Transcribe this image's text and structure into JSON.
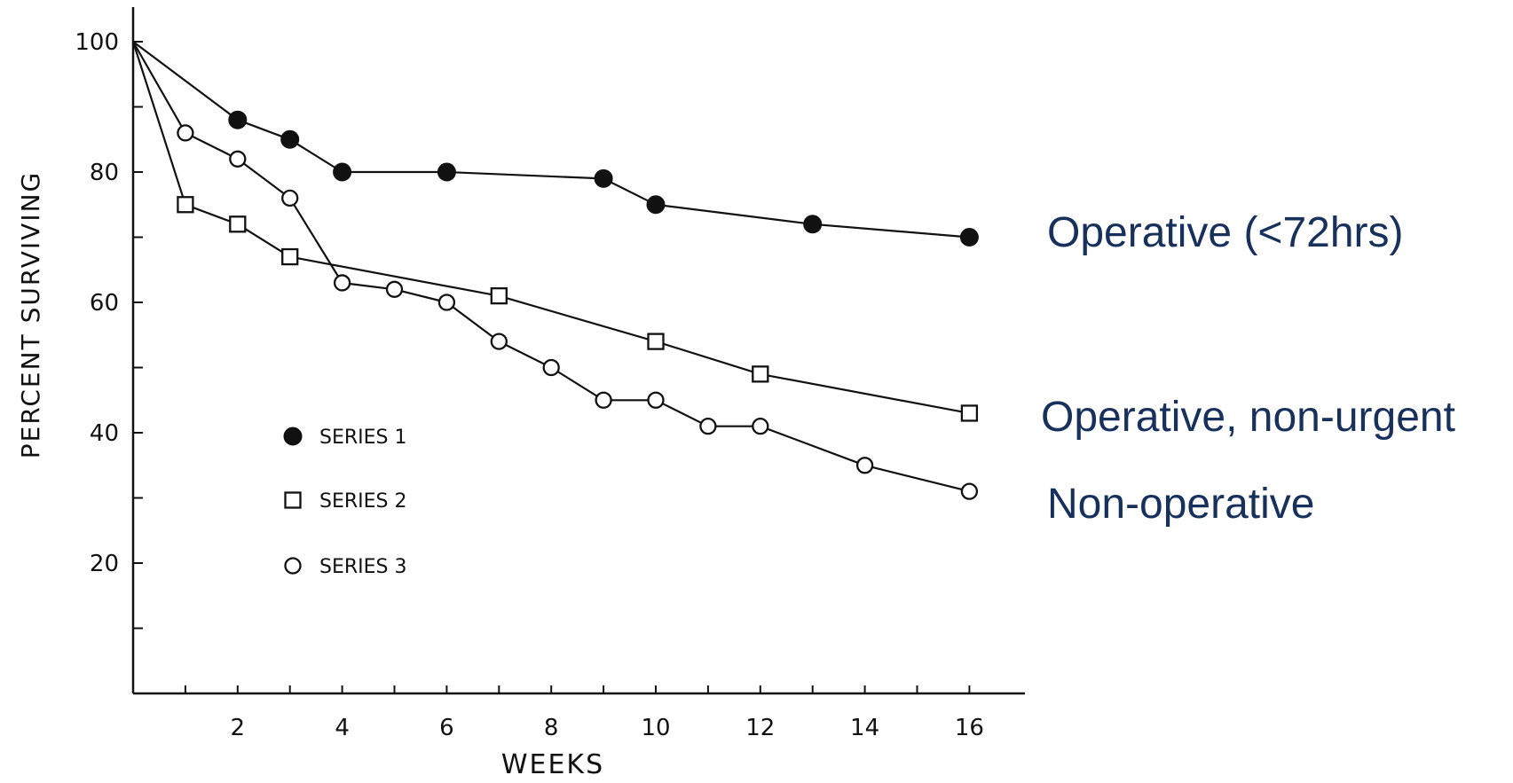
{
  "colors": {
    "ink": "#111111",
    "annotation": "#17305c",
    "background": "#ffffff"
  },
  "chart_data": {
    "type": "line",
    "title": "",
    "xlabel": "WEEKS",
    "ylabel": "PERCENT SURVIVING",
    "xlim": [
      0,
      17
    ],
    "ylim": [
      0,
      105
    ],
    "x_ticks": [
      2,
      4,
      6,
      8,
      10,
      12,
      14,
      16
    ],
    "x_tick_labels": [
      "2",
      "4",
      "6",
      "8",
      "10",
      "12",
      "14",
      "16"
    ],
    "y_ticks": [
      20,
      40,
      60,
      80,
      100
    ],
    "y_tick_labels": [
      "20",
      "40",
      "60",
      "80",
      "100"
    ],
    "grid": false,
    "legend_position": "lower-left inside plot",
    "series": [
      {
        "name": "SERIES 1",
        "marker": "filled-circle",
        "annotation": "Operative (<72hrs)",
        "x": [
          0,
          2,
          3,
          4,
          6,
          9,
          10,
          13,
          16
        ],
        "y": [
          100,
          88,
          85,
          80,
          80,
          79,
          75,
          72,
          70
        ]
      },
      {
        "name": "SERIES 2",
        "marker": "open-square",
        "annotation": "Operative, non-urgent",
        "x": [
          0,
          1,
          2,
          3,
          7,
          10,
          12,
          16
        ],
        "y": [
          100,
          75,
          72,
          67,
          61,
          54,
          49,
          43
        ]
      },
      {
        "name": "SERIES 3",
        "marker": "open-circle",
        "annotation": "Non-operative",
        "x": [
          0,
          1,
          2,
          3,
          4,
          5,
          6,
          7,
          8,
          9,
          10,
          11,
          12,
          14,
          16
        ],
        "y": [
          100,
          86,
          82,
          76,
          63,
          62,
          60,
          54,
          50,
          45,
          45,
          41,
          41,
          35,
          31
        ],
        "marker_count": 14
      }
    ]
  }
}
